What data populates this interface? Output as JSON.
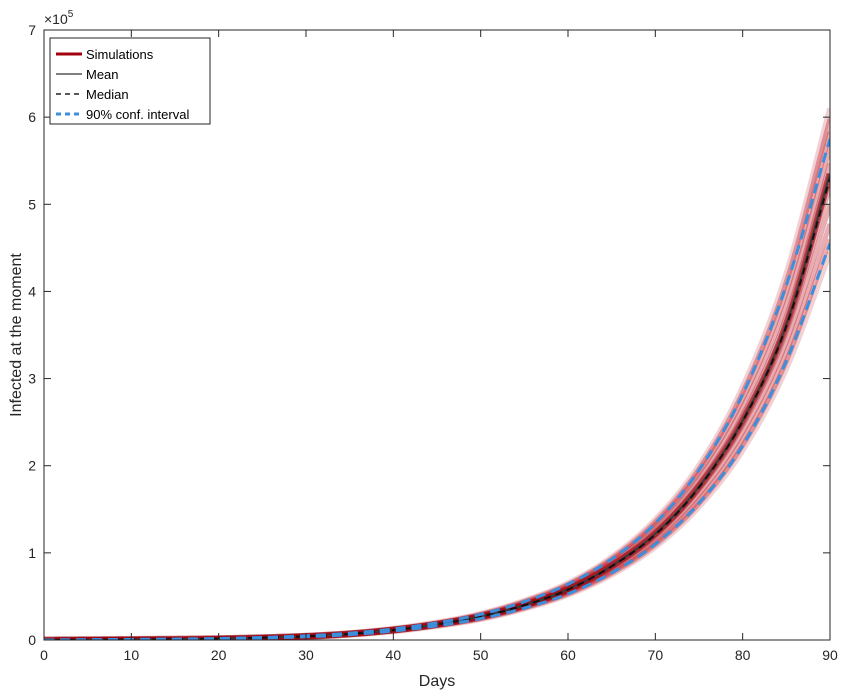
{
  "chart_data": {
    "type": "line",
    "xlabel": "Days",
    "ylabel": "Infected at the moment",
    "xlim": [
      0,
      90
    ],
    "ylim": [
      0,
      7
    ],
    "y_multiplier_label": "×10",
    "y_multiplier_exponent": "5",
    "xticks": [
      0,
      10,
      20,
      30,
      40,
      50,
      60,
      70,
      80,
      90
    ],
    "yticks": [
      0,
      1,
      2,
      3,
      4,
      5,
      6,
      7
    ],
    "grid": false,
    "legend_position": "top-left",
    "x": [
      0,
      10,
      20,
      30,
      35,
      40,
      45,
      50,
      55,
      60,
      65,
      70,
      75,
      80,
      85,
      90
    ],
    "series": [
      {
        "name": "Simulations",
        "style": "band",
        "color": "#b3000f",
        "lower": [
          0.0,
          0.005,
          0.012,
          0.035,
          0.06,
          0.1,
          0.16,
          0.24,
          0.36,
          0.52,
          0.75,
          1.07,
          1.53,
          2.18,
          3.12,
          4.45
        ],
        "upper": [
          0.0,
          0.007,
          0.018,
          0.05,
          0.08,
          0.13,
          0.2,
          0.3,
          0.45,
          0.65,
          0.95,
          1.38,
          2.0,
          2.9,
          4.2,
          6.1
        ],
        "values": [
          0.0,
          0.006,
          0.015,
          0.042,
          0.07,
          0.115,
          0.18,
          0.27,
          0.4,
          0.58,
          0.85,
          1.22,
          1.76,
          2.52,
          3.62,
          5.35
        ]
      },
      {
        "name": "Mean",
        "style": "solid",
        "color": "#7f7f7f",
        "values": [
          0.0,
          0.006,
          0.015,
          0.042,
          0.07,
          0.115,
          0.18,
          0.27,
          0.4,
          0.58,
          0.85,
          1.22,
          1.76,
          2.52,
          3.62,
          5.35
        ]
      },
      {
        "name": "Median",
        "style": "dashed",
        "color": "#595959",
        "values": [
          0.0,
          0.006,
          0.015,
          0.042,
          0.07,
          0.114,
          0.179,
          0.269,
          0.398,
          0.578,
          0.845,
          1.21,
          1.75,
          2.51,
          3.6,
          5.3
        ]
      },
      {
        "name": "90% conf. interval",
        "style": "dashed",
        "color": "#3b8fdc",
        "lower": [
          0.0,
          0.005,
          0.013,
          0.037,
          0.062,
          0.103,
          0.163,
          0.245,
          0.365,
          0.53,
          0.77,
          1.1,
          1.57,
          2.23,
          3.2,
          4.55
        ],
        "upper": [
          0.0,
          0.007,
          0.017,
          0.048,
          0.078,
          0.127,
          0.197,
          0.295,
          0.44,
          0.64,
          0.93,
          1.34,
          1.95,
          2.82,
          4.07,
          5.75
        ]
      }
    ]
  }
}
